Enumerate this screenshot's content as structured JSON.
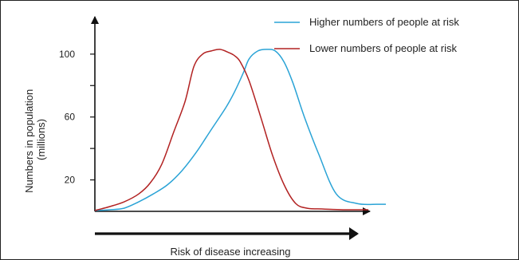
{
  "chart_data": {
    "type": "line",
    "title": "",
    "xlabel": "Risk of disease increasing",
    "ylabel": "Numbers in population (millions)",
    "ylabel_lines": [
      "Numbers in population",
      "(millions)"
    ],
    "y_ticks": [
      {
        "value": 20,
        "label": "20"
      },
      {
        "value": 60,
        "label": "60"
      },
      {
        "value": 100,
        "label": "100"
      }
    ],
    "y_minor_ticks": [
      40,
      80
    ],
    "ylim": [
      0,
      140
    ],
    "xlim": [
      0,
      100
    ],
    "legend_position": "top-right",
    "grid": false,
    "series": [
      {
        "name": "Higher numbers of people at risk",
        "color": "#2aa3d6",
        "x": [
          0,
          5,
          10,
          15,
          20,
          25,
          30,
          35,
          40,
          45,
          48,
          51,
          53,
          56,
          59,
          62,
          65,
          68,
          72,
          77,
          83,
          90,
          97,
          100
        ],
        "y": [
          0.5,
          1,
          2,
          6,
          11,
          17,
          26,
          38,
          52,
          66,
          76,
          88,
          97,
          102,
          103,
          102,
          95,
          82,
          60,
          36,
          11,
          5,
          4.5,
          4.5
        ]
      },
      {
        "name": "Lower numbers of people at risk",
        "color": "#b22222",
        "x": [
          0,
          5,
          10,
          15,
          19,
          23,
          27,
          31,
          34,
          37,
          40,
          43,
          46,
          48,
          50,
          53,
          57,
          61,
          65,
          69,
          73,
          78,
          82,
          86,
          90,
          94
        ],
        "y": [
          0.5,
          3,
          6,
          11,
          18,
          30,
          50,
          70,
          92,
          100,
          102,
          103,
          101,
          99,
          95,
          83,
          60,
          36,
          17,
          5,
          2,
          1.5,
          1.2,
          1,
          1,
          1
        ]
      }
    ]
  }
}
